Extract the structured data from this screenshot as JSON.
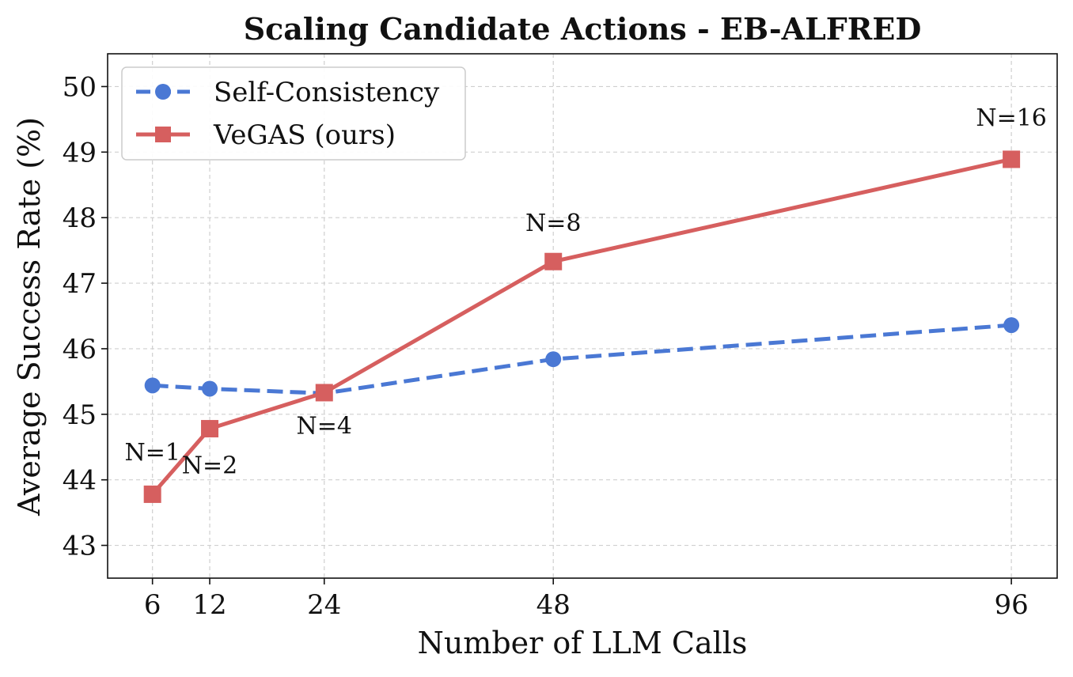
{
  "chart_data": {
    "type": "line",
    "title": "Scaling Candidate Actions - EB-ALFRED",
    "xlabel": "Number of LLM Calls",
    "ylabel": "Average Success Rate (%)",
    "x_ticks": [
      6,
      12,
      24,
      48,
      96
    ],
    "y_ticks": [
      43,
      44,
      45,
      46,
      47,
      48,
      49,
      50
    ],
    "xlim": [
      1.3,
      100.8
    ],
    "ylim": [
      42.5,
      50.5
    ],
    "grid": true,
    "legend_position": "top-left",
    "series": [
      {
        "name": "Self-Consistency",
        "color": "#4a78d4",
        "marker": "circle",
        "line_style": "dashed",
        "x": [
          6,
          12,
          24,
          48,
          96
        ],
        "y": [
          45.44,
          45.39,
          45.32,
          45.84,
          46.36
        ]
      },
      {
        "name": "VeGAS (ours)",
        "color": "#d65f5f",
        "marker": "square",
        "line_style": "solid",
        "x": [
          6,
          12,
          24,
          48,
          96
        ],
        "y": [
          43.78,
          44.78,
          45.33,
          47.33,
          48.89
        ]
      }
    ],
    "annotations": [
      {
        "text": "N=1",
        "x": 6,
        "y": 44.3
      },
      {
        "text": "N=2",
        "x": 12,
        "y": 44.1
      },
      {
        "text": "N=4",
        "x": 24,
        "y": 44.7
      },
      {
        "text": "N=8",
        "x": 48,
        "y": 47.8
      },
      {
        "text": "N=16",
        "x": 96,
        "y": 49.4
      }
    ]
  }
}
